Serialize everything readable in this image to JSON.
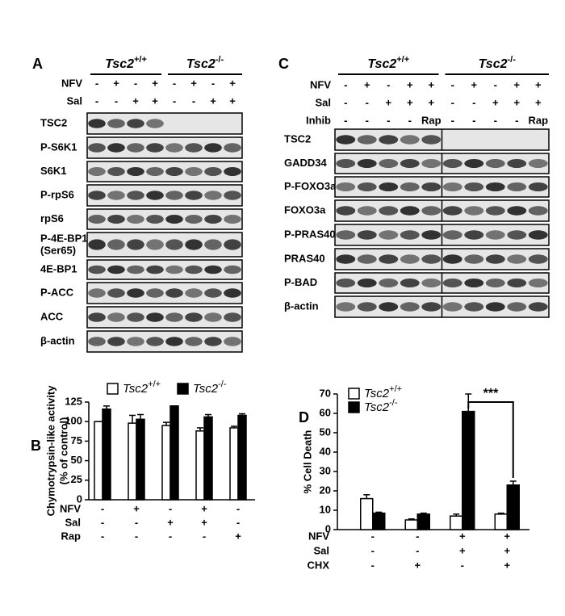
{
  "blot_a": {
    "panel_label": "A",
    "groups": [
      {
        "name": "Tsc2",
        "superscript": "+/+"
      },
      {
        "name": "Tsc2",
        "superscript": "-/-"
      }
    ],
    "conditions": [
      {
        "name": "NFV",
        "signs": [
          "-",
          "+",
          "-",
          "+",
          "-",
          "+",
          "-",
          "+"
        ]
      },
      {
        "name": "Sal",
        "signs": [
          "-",
          "-",
          "+",
          "+",
          "-",
          "-",
          "+",
          "+"
        ]
      }
    ],
    "blots": [
      {
        "label": "TSC2"
      },
      {
        "label": "P-S6K1"
      },
      {
        "label": "S6K1"
      },
      {
        "label": "P-rpS6"
      },
      {
        "label": "rpS6"
      },
      {
        "label": "P-4E-BP1",
        "note": "(Ser65)"
      },
      {
        "label": "4E-BP1"
      },
      {
        "label": "P-ACC"
      },
      {
        "label": "ACC"
      },
      {
        "label": "β-actin"
      }
    ]
  },
  "blot_c": {
    "panel_label": "C",
    "groups": [
      {
        "name": "Tsc2",
        "superscript": "+/+"
      },
      {
        "name": "Tsc2",
        "superscript": "-/-"
      }
    ],
    "conditions": [
      {
        "name": "NFV",
        "signs": [
          "-",
          "+",
          "-",
          "+",
          "+",
          "-",
          "+",
          "-",
          "+",
          "+"
        ]
      },
      {
        "name": "Sal",
        "signs": [
          "-",
          "-",
          "+",
          "+",
          "+",
          "-",
          "-",
          "+",
          "+",
          "+"
        ]
      },
      {
        "name": "Inhib",
        "signs": [
          "-",
          "-",
          "-",
          "-",
          "Rap",
          "-",
          "-",
          "-",
          "-",
          "Rap"
        ]
      }
    ],
    "blots": [
      {
        "label": "TSC2"
      },
      {
        "label": "GADD34"
      },
      {
        "label": "P-FOXO3a"
      },
      {
        "label": "FOXO3a"
      },
      {
        "label": "P-PRAS40"
      },
      {
        "label": "PRAS40"
      },
      {
        "label": "P-BAD"
      },
      {
        "label": "β-actin"
      }
    ]
  },
  "chart_data": [
    {
      "type": "bar",
      "panel_label": "B",
      "ylabel": [
        "Chymotrypsin-like activity",
        "(% of control)"
      ],
      "ylim": [
        0,
        125
      ],
      "yticks": [
        0,
        25,
        50,
        75,
        100,
        125
      ],
      "series": [
        {
          "name": "Tsc2",
          "superscript": "+/+",
          "color": "#ffffff",
          "values": [
            100,
            98,
            95,
            88,
            92
          ],
          "errors": [
            0,
            10,
            4,
            4,
            2
          ]
        },
        {
          "name": "Tsc2",
          "superscript": "-/-",
          "color": "#000000",
          "values": [
            116,
            103,
            120,
            106,
            108
          ],
          "errors": [
            4,
            6,
            0,
            3,
            2
          ]
        }
      ],
      "conditions": [
        {
          "name": "NFV",
          "signs": [
            "-",
            "+",
            "-",
            "+",
            "-"
          ]
        },
        {
          "name": "Sal",
          "signs": [
            "-",
            "-",
            "+",
            "+",
            "-"
          ]
        },
        {
          "name": "Rap",
          "signs": [
            "-",
            "-",
            "-",
            "-",
            "+"
          ]
        }
      ]
    },
    {
      "type": "bar",
      "panel_label": "D",
      "ylabel": [
        "% Cell Death"
      ],
      "ylim": [
        0,
        70
      ],
      "yticks": [
        0,
        10,
        20,
        30,
        40,
        50,
        60,
        70
      ],
      "series": [
        {
          "name": "Tsc2",
          "superscript": "+/+",
          "color": "#ffffff",
          "values": [
            16,
            5,
            7,
            8
          ],
          "errors": [
            2,
            0.5,
            1,
            0.5
          ]
        },
        {
          "name": "Tsc2",
          "superscript": "-/-",
          "color": "#000000",
          "values": [
            8.5,
            8,
            61,
            23
          ],
          "errors": [
            0.5,
            0.5,
            9,
            2
          ]
        }
      ],
      "conditions": [
        {
          "name": "NFV",
          "signs": [
            "-",
            "-",
            "+",
            "+"
          ]
        },
        {
          "name": "Sal",
          "signs": [
            "-",
            "-",
            "+",
            "+"
          ]
        },
        {
          "name": "CHX",
          "signs": [
            "-",
            "+",
            "-",
            "+"
          ]
        }
      ],
      "annotation": "***"
    }
  ]
}
